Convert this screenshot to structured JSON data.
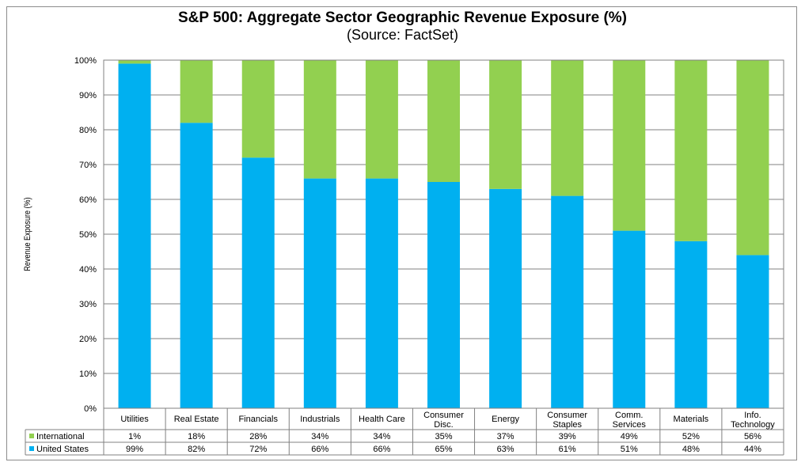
{
  "chart_data": {
    "type": "bar",
    "stacked": true,
    "title": "S&P 500: Aggregate Sector Geographic Revenue Exposure (%)",
    "subtitle": "(Source: FactSet)",
    "ylabel": "Revenue Exposure (%)",
    "xlabel": "",
    "ylim": [
      0,
      100
    ],
    "y_ticks": [
      "0%",
      "10%",
      "20%",
      "30%",
      "40%",
      "50%",
      "60%",
      "70%",
      "80%",
      "90%",
      "100%"
    ],
    "grid": true,
    "categories": [
      [
        "Utilities"
      ],
      [
        "Real Estate"
      ],
      [
        "Financials"
      ],
      [
        "Industrials"
      ],
      [
        "Health Care"
      ],
      [
        "Consumer",
        "Disc."
      ],
      [
        "Energy"
      ],
      [
        "Consumer",
        "Staples"
      ],
      [
        "Comm.",
        "Services"
      ],
      [
        "Materials"
      ],
      [
        "Info.",
        "Technology"
      ]
    ],
    "series": [
      {
        "name": "United States",
        "color": "#00b0f0",
        "values": [
          99,
          82,
          72,
          66,
          66,
          65,
          63,
          61,
          51,
          48,
          44
        ],
        "labels": [
          "99%",
          "82%",
          "72%",
          "66%",
          "66%",
          "65%",
          "63%",
          "61%",
          "51%",
          "48%",
          "44%"
        ]
      },
      {
        "name": "International",
        "color": "#92d050",
        "values": [
          1,
          18,
          28,
          34,
          34,
          35,
          37,
          39,
          49,
          52,
          56
        ],
        "labels": [
          "1%",
          "18%",
          "28%",
          "34%",
          "34%",
          "35%",
          "37%",
          "39%",
          "49%",
          "52%",
          "56%"
        ]
      }
    ],
    "table_rows": [
      "International",
      "United States"
    ]
  }
}
